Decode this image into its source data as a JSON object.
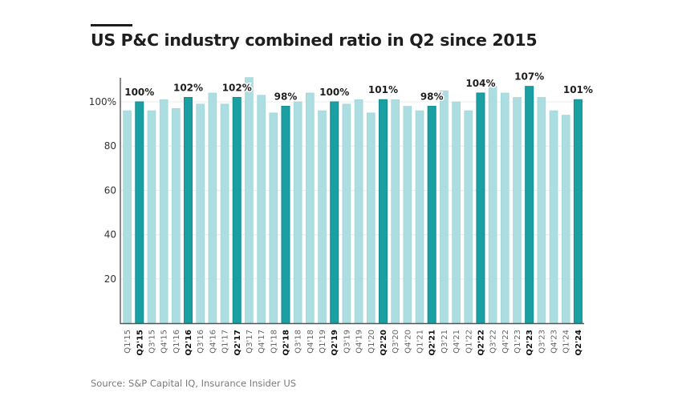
{
  "header": {
    "title": "US P&C industry combined ratio in Q2 since 2015"
  },
  "footer": {
    "source": "Source: S&P Capital IQ, Insurance Insider US"
  },
  "colors": {
    "highlight": "#1a9fa3",
    "regular": "#acdde0",
    "axis": "#555555",
    "grid": "#ececec",
    "text": "#1e1e1e"
  },
  "chart_data": {
    "type": "bar",
    "title": "US P&C industry combined ratio in Q2 since 2015",
    "xlabel": "",
    "ylabel": "",
    "ylim": [
      0,
      112
    ],
    "grid": true,
    "yticks": [
      {
        "value": 20,
        "label": "20"
      },
      {
        "value": 40,
        "label": "40"
      },
      {
        "value": 60,
        "label": "60"
      },
      {
        "value": 80,
        "label": "80"
      },
      {
        "value": 100,
        "label": "100%"
      }
    ],
    "categories": [
      "Q1'15",
      "Q2'15",
      "Q3'15",
      "Q4'15",
      "Q1'16",
      "Q2'16",
      "Q3'16",
      "Q4'16",
      "Q1'17",
      "Q2'17",
      "Q3'17",
      "Q4'17",
      "Q1'18",
      "Q2'18",
      "Q3'18",
      "Q4'18",
      "Q1'19",
      "Q2'19",
      "Q3'19",
      "Q4'19",
      "Q1'20",
      "Q2'20",
      "Q3'20",
      "Q4'20",
      "Q1'21",
      "Q2'21",
      "Q3'21",
      "Q4'21",
      "Q1'22",
      "Q2'22",
      "Q3'22",
      "Q4'22",
      "Q1'23",
      "Q2'23",
      "Q3'23",
      "Q4'23",
      "Q1'24",
      "Q2'24"
    ],
    "values": [
      96,
      100,
      96,
      101,
      97,
      102,
      99,
      104,
      99,
      102,
      111,
      103,
      95,
      98,
      100,
      104,
      96,
      100,
      99,
      101,
      95,
      101,
      101,
      98,
      96,
      98,
      105,
      100,
      96,
      104,
      107,
      104,
      102,
      107,
      102,
      96,
      94,
      101
    ],
    "highlighted": [
      false,
      true,
      false,
      false,
      false,
      true,
      false,
      false,
      false,
      true,
      false,
      false,
      false,
      true,
      false,
      false,
      false,
      true,
      false,
      false,
      false,
      true,
      false,
      false,
      false,
      true,
      false,
      false,
      false,
      true,
      false,
      false,
      false,
      true,
      false,
      false,
      false,
      true
    ],
    "data_labels": [
      "",
      "100%",
      "",
      "",
      "",
      "102%",
      "",
      "",
      "",
      "102%",
      "",
      "",
      "",
      "98%",
      "",
      "",
      "",
      "100%",
      "",
      "",
      "",
      "101%",
      "",
      "",
      "",
      "98%",
      "",
      "",
      "",
      "104%",
      "",
      "",
      "",
      "107%",
      "",
      "",
      "",
      "101%"
    ]
  }
}
